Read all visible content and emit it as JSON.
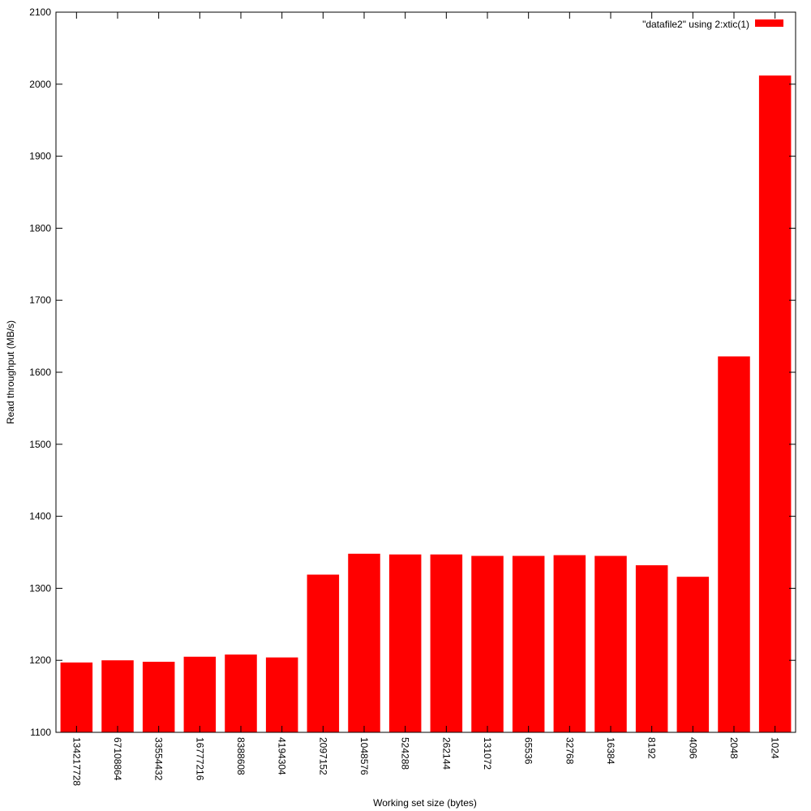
{
  "chart_data": {
    "type": "bar",
    "title": "",
    "xlabel": "Working set size (bytes)",
    "ylabel": "Read throughput (MB/s)",
    "ylim": [
      1100,
      2100
    ],
    "yticks": [
      1100,
      1200,
      1300,
      1400,
      1500,
      1600,
      1700,
      1800,
      1900,
      2000,
      2100
    ],
    "grid": false,
    "legend_position": "top-right",
    "categories": [
      "134217728",
      "67108864",
      "33554432",
      "16777216",
      "8388608",
      "4194304",
      "2097152",
      "1048576",
      "524288",
      "262144",
      "131072",
      "65536",
      "32768",
      "16384",
      "8192",
      "4096",
      "2048",
      "1024"
    ],
    "series": [
      {
        "name": "\"datafile2\" using 2:xtic(1)",
        "color": "#ff0000",
        "values": [
          1197,
          1200,
          1198,
          1205,
          1208,
          1204,
          1319,
          1348,
          1347,
          1347,
          1345,
          1345,
          1346,
          1345,
          1332,
          1316,
          1622,
          2012
        ]
      }
    ]
  }
}
